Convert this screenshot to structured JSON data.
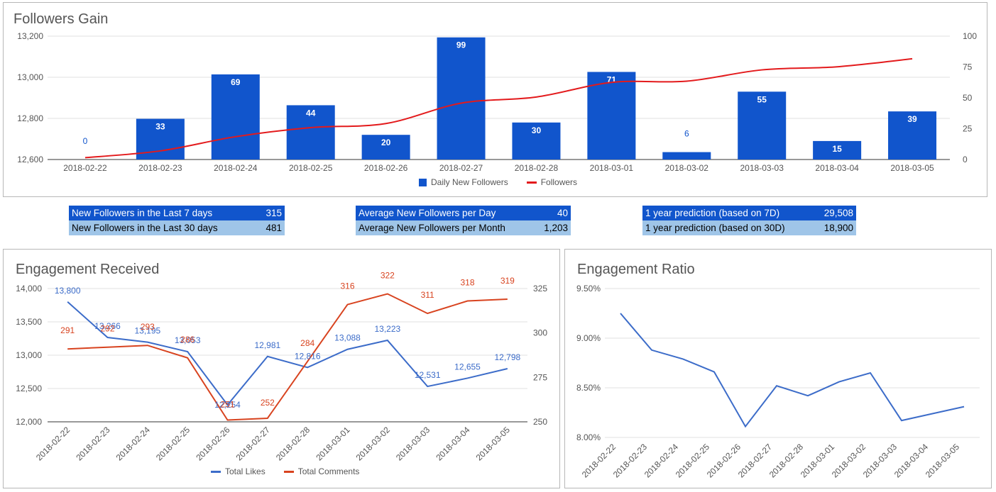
{
  "followers_gain": {
    "title": "Followers Gain",
    "legend": {
      "bars": "Daily New Followers",
      "line": "Followers"
    }
  },
  "stats": {
    "tables": [
      {
        "rows": [
          {
            "label": "New Followers in the Last 7 days",
            "value": "315"
          },
          {
            "label": "New Followers in the Last 30 days",
            "value": "481"
          }
        ]
      },
      {
        "rows": [
          {
            "label": "Average New Followers per Day",
            "value": "40"
          },
          {
            "label": "Average New Followers per Month",
            "value": "1,203"
          }
        ]
      },
      {
        "rows": [
          {
            "label": "1 year prediction (based on 7D)",
            "value": "29,508"
          },
          {
            "label": "1 year prediction (based on 30D)",
            "value": "18,900"
          }
        ]
      }
    ]
  },
  "engagement": {
    "title": "Engagement Received",
    "legend": {
      "likes": "Total Likes",
      "comments": "Total Comments"
    }
  },
  "ratio": {
    "title": "Engagement Ratio"
  },
  "colors": {
    "bar": "#1155cc",
    "followers_line": "#e31a1c",
    "likes": "#3c6cc9",
    "comments": "#d8431f",
    "ratio_line": "#3c6cc9",
    "grid": "#e0e0e0"
  },
  "chart_data": [
    {
      "id": "followers-gain",
      "type": "bar",
      "title": "Followers Gain",
      "categories": [
        "2018-02-22",
        "2018-02-23",
        "2018-02-24",
        "2018-02-25",
        "2018-02-26",
        "2018-02-27",
        "2018-02-28",
        "2018-03-01",
        "2018-03-02",
        "2018-03-03",
        "2018-03-04",
        "2018-03-05"
      ],
      "series": [
        {
          "name": "Daily New Followers",
          "type": "bar",
          "axis": "right",
          "values": [
            0,
            33,
            69,
            44,
            20,
            99,
            30,
            71,
            6,
            55,
            15,
            39
          ]
        },
        {
          "name": "Followers",
          "type": "line",
          "axis": "left",
          "values": [
            12609,
            12642,
            12711,
            12755,
            12775,
            12874,
            12904,
            12975,
            12981,
            13036,
            13051,
            13090
          ]
        }
      ],
      "y_left": {
        "range": [
          12600,
          13200
        ],
        "ticks": [
          "12,600",
          "12,800",
          "13,000",
          "13,200"
        ]
      },
      "y_right": {
        "range": [
          0,
          100
        ],
        "ticks": [
          "0",
          "25",
          "50",
          "75",
          "100"
        ]
      }
    },
    {
      "id": "engagement-received",
      "type": "line",
      "title": "Engagement Received",
      "categories": [
        "2018-02-22",
        "2018-02-23",
        "2018-02-24",
        "2018-02-25",
        "2018-02-26",
        "2018-02-27",
        "2018-02-28",
        "2018-03-01",
        "2018-03-02",
        "2018-03-03",
        "2018-03-04",
        "2018-03-05"
      ],
      "series": [
        {
          "name": "Total Likes",
          "axis": "left",
          "values": [
            13800,
            13266,
            13195,
            13053,
            12254,
            12981,
            12816,
            13088,
            13223,
            12531,
            12655,
            12798
          ],
          "labels": [
            "13,800",
            "13,266",
            "13,195",
            "13,053",
            "12,254",
            "12,981",
            "12,816",
            "13,088",
            "13,223",
            "12,531",
            "12,655",
            "12,798"
          ]
        },
        {
          "name": "Total Comments",
          "axis": "right",
          "values": [
            291,
            292,
            293,
            286,
            251,
            252,
            284,
            316,
            322,
            311,
            318,
            319
          ],
          "labels": [
            "291",
            "292",
            "293",
            "286",
            "251",
            "252",
            "284",
            "316",
            "322",
            "311",
            "318",
            "319"
          ]
        }
      ],
      "y_left": {
        "range": [
          12000,
          14000
        ],
        "ticks": [
          "12,000",
          "12,500",
          "13,000",
          "13,500",
          "14,000"
        ]
      },
      "y_right": {
        "range": [
          250,
          325
        ],
        "ticks": [
          "250",
          "275",
          "300",
          "325"
        ]
      }
    },
    {
      "id": "engagement-ratio",
      "type": "line",
      "title": "Engagement Ratio",
      "categories": [
        "2018-02-22",
        "2018-02-23",
        "2018-02-24",
        "2018-02-25",
        "2018-02-26",
        "2018-02-27",
        "2018-02-28",
        "2018-03-01",
        "2018-03-02",
        "2018-03-03",
        "2018-03-04",
        "2018-03-05"
      ],
      "series": [
        {
          "name": "Engagement Ratio",
          "values": [
            9.25,
            8.88,
            8.79,
            8.66,
            8.11,
            8.52,
            8.42,
            8.56,
            8.65,
            8.17,
            8.24,
            8.31
          ]
        }
      ],
      "y": {
        "range": [
          8.0,
          9.5
        ],
        "ticks": [
          "8.00%",
          "8.50%",
          "9.00%",
          "9.50%"
        ]
      }
    }
  ]
}
